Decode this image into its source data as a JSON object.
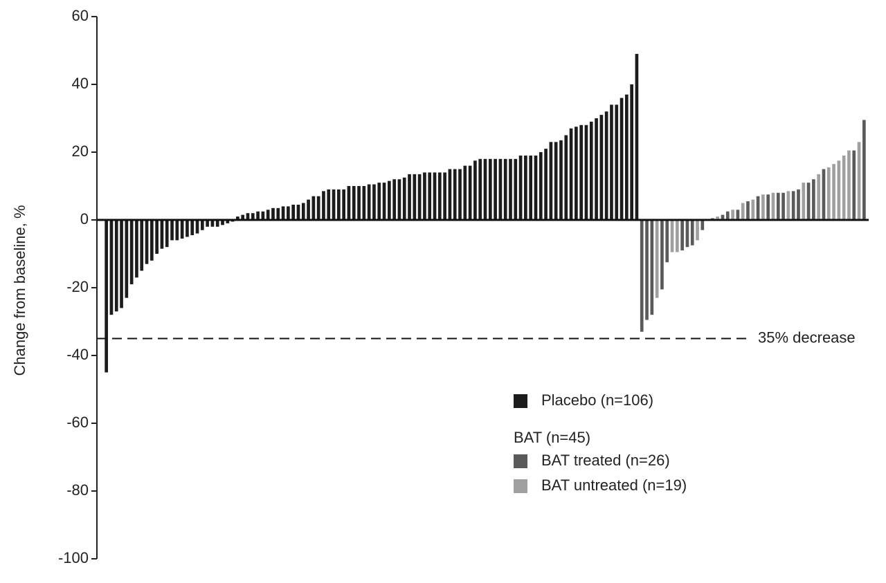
{
  "chart_data": {
    "type": "bar",
    "y_label": "Change from baseline, %",
    "ylim": [
      -100,
      60
    ],
    "yticks": [
      -100,
      -80,
      -60,
      -40,
      -20,
      0,
      20,
      40,
      60
    ],
    "threshold": {
      "value": -35,
      "label": "35% decrease"
    },
    "legend_group_title": "BAT (n=45)",
    "series": [
      {
        "name": "Placebo (n=106)",
        "color": "#1c1c1c",
        "values": [
          -45,
          -28,
          -27,
          -26,
          -23,
          -19,
          -17,
          -15,
          -13,
          -12,
          -10,
          -8.5,
          -8,
          -6,
          -6,
          -5.5,
          -5,
          -4.5,
          -4,
          -3,
          -2,
          -2,
          -2,
          -1.5,
          -1,
          -0.5,
          1,
          1.5,
          2,
          2,
          2.5,
          2.5,
          3,
          3.5,
          3.5,
          4,
          4,
          4.5,
          4.5,
          5,
          6,
          7,
          7,
          8.5,
          9,
          9,
          9,
          9,
          10,
          10,
          10,
          10,
          10.5,
          10.5,
          11,
          11,
          11.5,
          12,
          12,
          12.5,
          13.5,
          13.5,
          13.5,
          14,
          14,
          14,
          14,
          14,
          15,
          15,
          15,
          16,
          16,
          17.5,
          18,
          18,
          18,
          18,
          18,
          18,
          18,
          18,
          19,
          19,
          19,
          19,
          20,
          21,
          23,
          23,
          23.5,
          25,
          27,
          27.5,
          28,
          28,
          29,
          30,
          31,
          32,
          34,
          34,
          36,
          37,
          40,
          49,
          null,
          null,
          null,
          null,
          null,
          null,
          null,
          null,
          null,
          null,
          null,
          null,
          null,
          null,
          null,
          null,
          null,
          null,
          null,
          null,
          null,
          null,
          null,
          null,
          null,
          null,
          null,
          null,
          null,
          null,
          null,
          null,
          null,
          null,
          null,
          null,
          null,
          null,
          null,
          null,
          null,
          null,
          null,
          null,
          null
        ]
      },
      {
        "name": "BAT treated (n=26)",
        "color": "#5a5a5a",
        "values": [
          null,
          null,
          null,
          null,
          null,
          null,
          null,
          null,
          null,
          null,
          null,
          null,
          null,
          null,
          null,
          null,
          null,
          null,
          null,
          null,
          null,
          null,
          null,
          null,
          null,
          null,
          null,
          null,
          null,
          null,
          null,
          null,
          null,
          null,
          null,
          null,
          null,
          null,
          null,
          null,
          null,
          null,
          null,
          null,
          null,
          null,
          null,
          null,
          null,
          null,
          null,
          null,
          null,
          null,
          null,
          null,
          null,
          null,
          null,
          null,
          null,
          null,
          null,
          null,
          null,
          null,
          null,
          null,
          null,
          null,
          null,
          null,
          null,
          null,
          null,
          null,
          null,
          null,
          null,
          null,
          null,
          null,
          null,
          null,
          null,
          null,
          null,
          null,
          null,
          null,
          null,
          null,
          null,
          null,
          null,
          null,
          null,
          null,
          null,
          null,
          null,
          null,
          null,
          null,
          null,
          null,
          -33,
          -29.5,
          -28,
          null,
          -20.5,
          -12.5,
          null,
          null,
          -9,
          -8,
          -7.5,
          null,
          -3,
          0.3,
          0.5,
          null,
          1.5,
          2.5,
          null,
          3,
          null,
          5.5,
          null,
          7,
          null,
          7.5,
          null,
          8,
          8,
          null,
          8.5,
          9,
          null,
          11,
          12,
          null,
          15,
          null,
          null,
          null,
          null,
          null,
          20.5,
          null,
          29.5
        ]
      },
      {
        "name": "BAT untreated (n=19)",
        "color": "#a0a0a0",
        "values": [
          null,
          null,
          null,
          null,
          null,
          null,
          null,
          null,
          null,
          null,
          null,
          null,
          null,
          null,
          null,
          null,
          null,
          null,
          null,
          null,
          null,
          null,
          null,
          null,
          null,
          null,
          null,
          null,
          null,
          null,
          null,
          null,
          null,
          null,
          null,
          null,
          null,
          null,
          null,
          null,
          null,
          null,
          null,
          null,
          null,
          null,
          null,
          null,
          null,
          null,
          null,
          null,
          null,
          null,
          null,
          null,
          null,
          null,
          null,
          null,
          null,
          null,
          null,
          null,
          null,
          null,
          null,
          null,
          null,
          null,
          null,
          null,
          null,
          null,
          null,
          null,
          null,
          null,
          null,
          null,
          null,
          null,
          null,
          null,
          null,
          null,
          null,
          null,
          null,
          null,
          null,
          null,
          null,
          null,
          null,
          null,
          null,
          null,
          null,
          null,
          null,
          null,
          null,
          null,
          null,
          null,
          null,
          null,
          null,
          -23,
          null,
          null,
          -9.5,
          -9.5,
          null,
          null,
          null,
          -6,
          null,
          null,
          null,
          1,
          null,
          null,
          3,
          null,
          5,
          null,
          6,
          null,
          7.5,
          null,
          8,
          null,
          null,
          8.5,
          null,
          null,
          11,
          null,
          null,
          13.5,
          null,
          15.5,
          16.5,
          17.5,
          19,
          20.5,
          null,
          23,
          null
        ]
      }
    ]
  }
}
